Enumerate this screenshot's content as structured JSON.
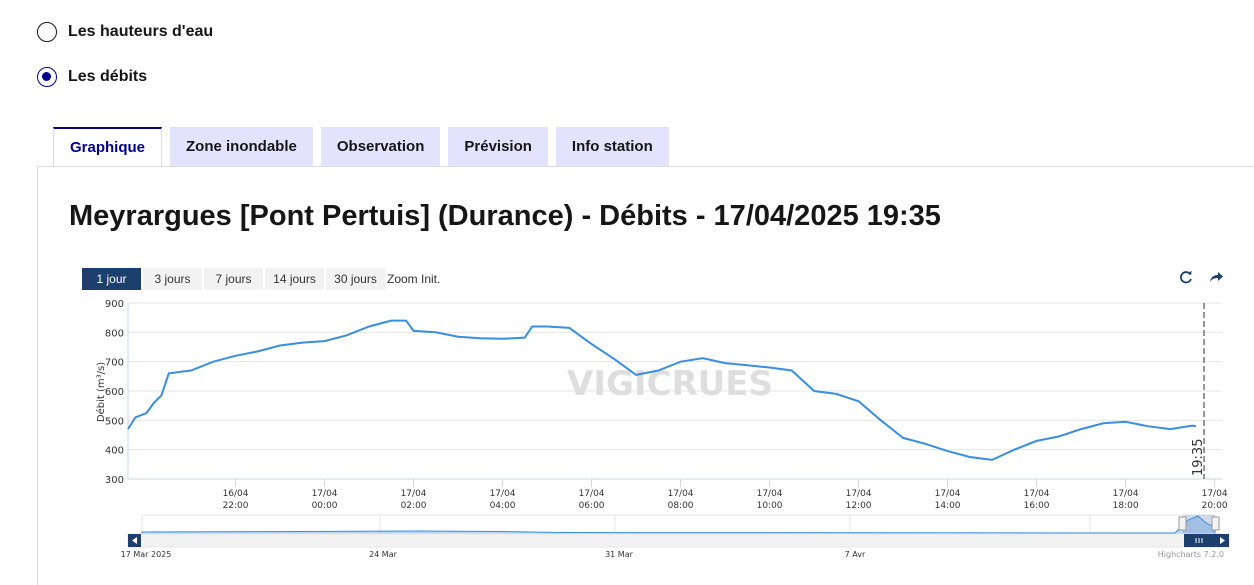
{
  "options": [
    {
      "label": "Les hauteurs d'eau",
      "checked": false
    },
    {
      "label": "Les débits",
      "checked": true
    }
  ],
  "tabs": [
    "Graphique",
    "Zone inondable",
    "Observation",
    "Prévision",
    "Info station"
  ],
  "active_tab": "Graphique",
  "range_buttons": [
    "1 jour",
    "3 jours",
    "7 jours",
    "14 jours",
    "30 jours"
  ],
  "range_selected": "1 jour",
  "zoom_init_label": "Zoom Init.",
  "tools": {
    "refresh": "refresh-icon",
    "share": "share-icon"
  },
  "watermark": "VIGICRUES",
  "credits": "Highcharts 7.2.0",
  "colors": {
    "line": "#3a8ee0",
    "selected_button": "#1d3f6e",
    "accent": "#000091",
    "tab_bg": "#e3e3fd"
  },
  "chart_data": {
    "type": "line",
    "title": "Meyrargues [Pont Pertuis] (Durance) - Débits - 17/04/2025 19:35",
    "ylabel": "Débit (m³/s)",
    "ylim": [
      300,
      900
    ],
    "yticks": [
      300,
      400,
      500,
      600,
      700,
      800,
      900
    ],
    "xtick_labels": [
      [
        "16/04",
        "22:00"
      ],
      [
        "17/04",
        "00:00"
      ],
      [
        "17/04",
        "02:00"
      ],
      [
        "17/04",
        "04:00"
      ],
      [
        "17/04",
        "06:00"
      ],
      [
        "17/04",
        "08:00"
      ],
      [
        "17/04",
        "10:00"
      ],
      [
        "17/04",
        "12:00"
      ],
      [
        "17/04",
        "14:00"
      ],
      [
        "17/04",
        "16:00"
      ],
      [
        "17/04",
        "18:00"
      ],
      [
        "17/04",
        "20:00"
      ]
    ],
    "x_start": "16/04 19:35",
    "x_end": "17/04 20:10",
    "current_time_label": "19:35",
    "series": [
      {
        "x": [
          "16/04 19:35",
          "16/04 19:45",
          "16/04 20:00",
          "16/04 20:10",
          "16/04 20:20",
          "16/04 20:30",
          "16/04 20:45",
          "16/04 21:00",
          "16/04 21:30",
          "16/04 22:00",
          "16/04 22:30",
          "16/04 23:00",
          "16/04 23:30",
          "17/04 00:00",
          "17/04 00:30",
          "17/04 01:00",
          "17/04 01:30",
          "17/04 01:50",
          "17/04 02:00",
          "17/04 02:30",
          "17/04 03:00",
          "17/04 03:30",
          "17/04 04:00",
          "17/04 04:30",
          "17/04 04:40",
          "17/04 05:00",
          "17/04 05:30",
          "17/04 06:00",
          "17/04 06:30",
          "17/04 07:00",
          "17/04 07:30",
          "17/04 08:00",
          "17/04 08:30",
          "17/04 09:00",
          "17/04 09:30",
          "17/04 10:00",
          "17/04 10:30",
          "17/04 11:00",
          "17/04 11:30",
          "17/04 12:00",
          "17/04 12:30",
          "17/04 13:00",
          "17/04 13:30",
          "17/04 14:00",
          "17/04 14:30",
          "17/04 15:00",
          "17/04 15:30",
          "17/04 16:00",
          "17/04 16:30",
          "17/04 17:00",
          "17/04 17:30",
          "17/04 18:00",
          "17/04 18:30",
          "17/04 19:00",
          "17/04 19:30",
          "17/04 19:35"
        ],
        "values": [
          470,
          510,
          525,
          560,
          585,
          660,
          665,
          670,
          700,
          720,
          735,
          755,
          765,
          770,
          790,
          820,
          840,
          840,
          805,
          800,
          785,
          780,
          778,
          782,
          820,
          820,
          815,
          760,
          710,
          655,
          670,
          700,
          712,
          695,
          688,
          680,
          670,
          600,
          590,
          565,
          500,
          440,
          420,
          395,
          375,
          365,
          400,
          430,
          445,
          470,
          490,
          495,
          480,
          470,
          482,
          480
        ]
      }
    ]
  }
}
